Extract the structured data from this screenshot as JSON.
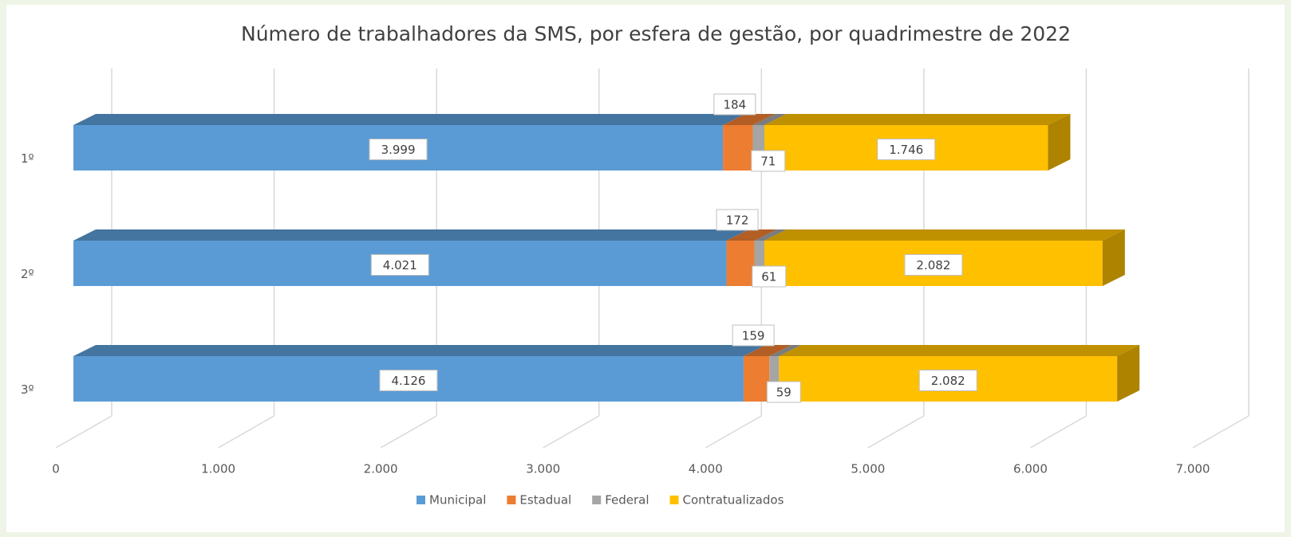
{
  "chart_data": {
    "type": "bar3d_stacked_horizontal",
    "title": "Número de trabalhadores da SMS, por esfera de gestão, por quadrimestre de 2022",
    "categories": [
      "1º",
      "2º",
      "3º"
    ],
    "series": [
      {
        "name": "Municipal",
        "color": "#5b9bd5",
        "values": [
          3999,
          4021,
          4126
        ],
        "value_labels": [
          "3.999",
          "4.021",
          "4.126"
        ]
      },
      {
        "name": "Estadual",
        "color": "#ed7d31",
        "values": [
          184,
          172,
          159
        ],
        "value_labels": [
          "184",
          "172",
          "159"
        ]
      },
      {
        "name": "Federal",
        "color": "#a5a5a5",
        "values": [
          71,
          61,
          59
        ],
        "value_labels": [
          "71",
          "61",
          "59"
        ]
      },
      {
        "name": "Contratualizados",
        "color": "#ffc000",
        "values": [
          1746,
          2082,
          2082
        ],
        "value_labels": [
          "1.746",
          "2.082",
          "2.082"
        ]
      }
    ],
    "xlim": [
      0,
      7000
    ],
    "xticks": [
      0,
      {
        "value": 1000,
        "label": "1.000"
      },
      {
        "value": 2000,
        "label": "2.000"
      },
      {
        "value": 3000,
        "label": "3.000"
      },
      {
        "value": 4000,
        "label": "4.000"
      },
      {
        "value": 5000,
        "label": "5.000"
      },
      {
        "value": 6000,
        "label": "6.000"
      },
      {
        "value": 7000,
        "label": "7.000"
      }
    ],
    "grid": true,
    "legend": "bottom"
  }
}
